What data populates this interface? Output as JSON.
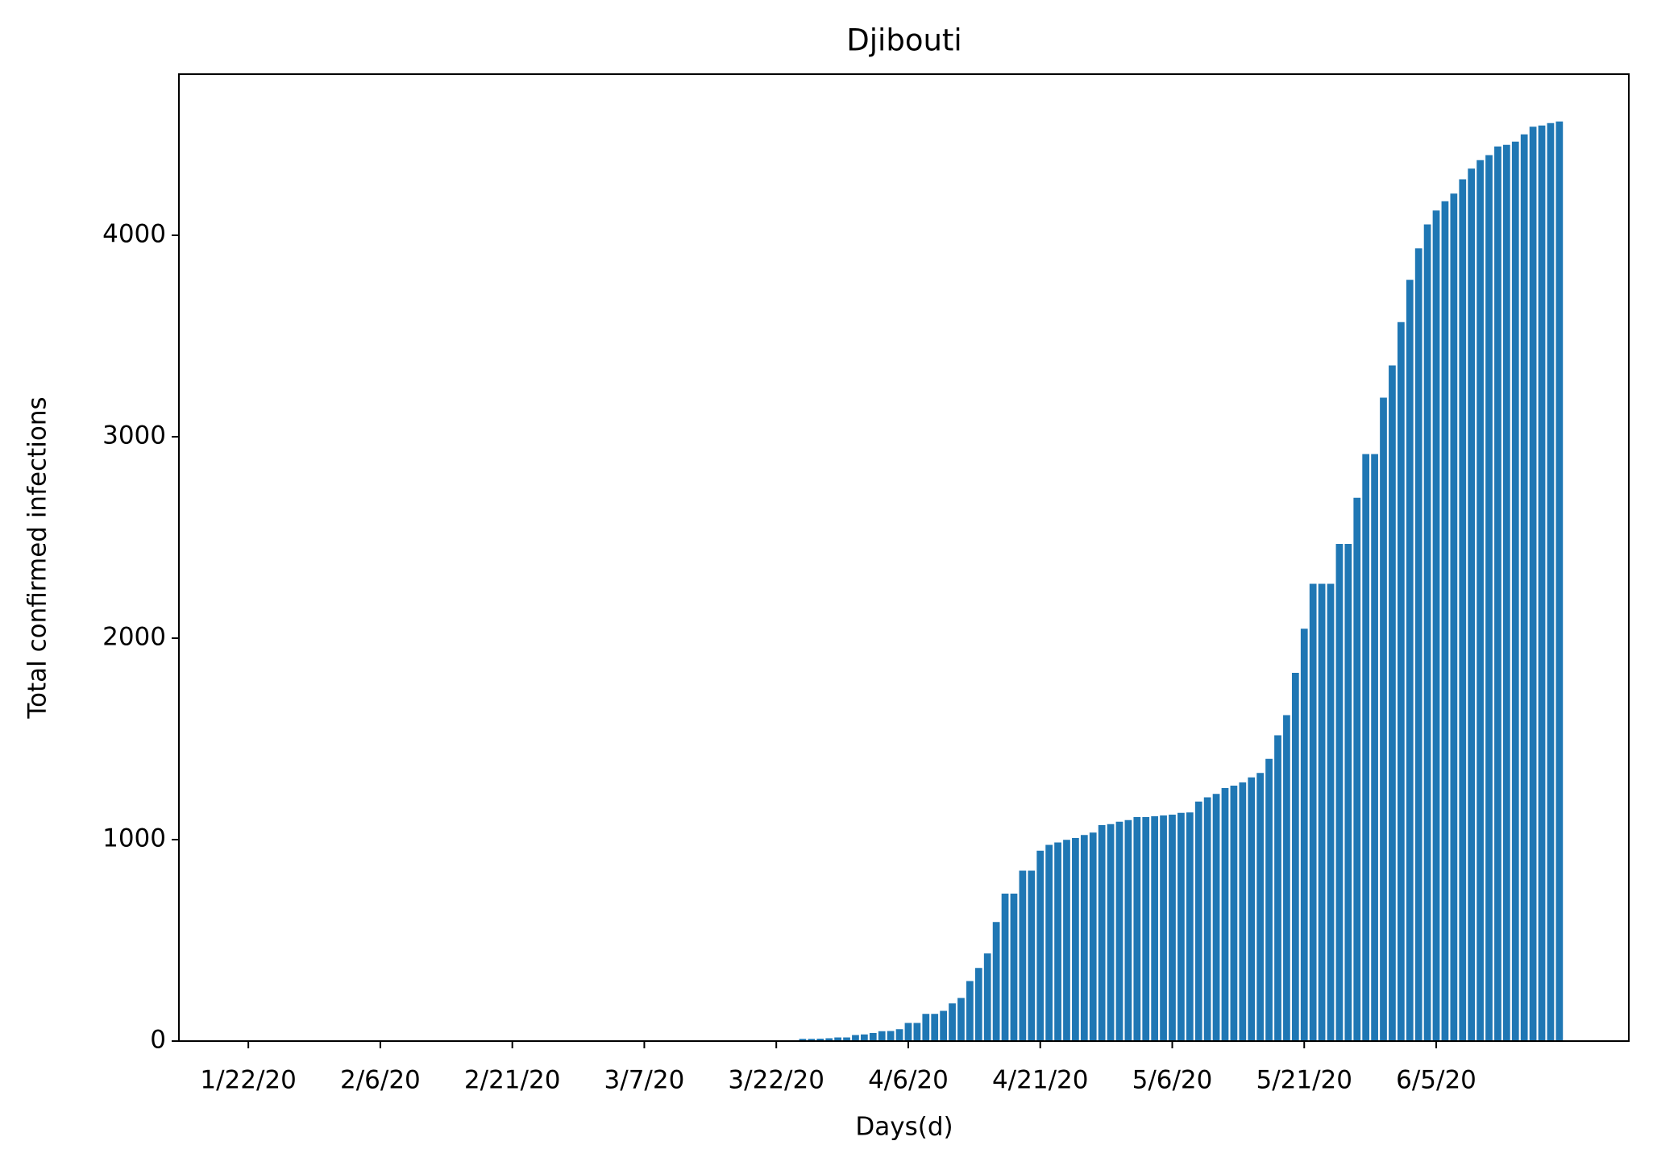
{
  "chart_data": {
    "type": "bar",
    "title": "Djibouti",
    "x_label": "Days(d)",
    "y_label": "Total confirmed infections",
    "color": "#1f77b4",
    "categories": [
      "1/22/20",
      null,
      null,
      null,
      null,
      null,
      null,
      null,
      null,
      null,
      null,
      null,
      null,
      null,
      null,
      "2/6/20",
      null,
      null,
      null,
      null,
      null,
      null,
      null,
      null,
      null,
      null,
      null,
      null,
      null,
      null,
      "2/21/20",
      null,
      null,
      null,
      null,
      null,
      null,
      null,
      null,
      null,
      null,
      null,
      null,
      null,
      null,
      "3/7/20",
      null,
      null,
      null,
      null,
      null,
      null,
      null,
      null,
      null,
      null,
      null,
      null,
      null,
      null,
      "3/22/20",
      null,
      null,
      null,
      null,
      null,
      null,
      null,
      null,
      null,
      null,
      null,
      null,
      null,
      null,
      "4/6/20",
      null,
      null,
      null,
      null,
      null,
      null,
      null,
      null,
      null,
      null,
      null,
      null,
      null,
      null,
      "4/21/20",
      null,
      null,
      null,
      null,
      null,
      null,
      null,
      null,
      null,
      null,
      null,
      null,
      null,
      null,
      "5/6/20",
      null,
      null,
      null,
      null,
      null,
      null,
      null,
      null,
      null,
      null,
      null,
      null,
      null,
      null,
      "5/21/20",
      null,
      null,
      null,
      null,
      null,
      null,
      null,
      null,
      null,
      null,
      null,
      null,
      null,
      null,
      "6/5/20",
      null,
      null,
      null,
      null,
      null,
      null,
      null,
      null,
      null,
      null,
      null,
      null,
      null,
      null
    ],
    "values": [
      0,
      0,
      0,
      0,
      0,
      0,
      0,
      0,
      0,
      0,
      0,
      0,
      0,
      0,
      0,
      0,
      0,
      0,
      0,
      0,
      0,
      0,
      0,
      0,
      0,
      0,
      0,
      0,
      0,
      0,
      0,
      0,
      0,
      0,
      0,
      0,
      0,
      0,
      0,
      0,
      0,
      0,
      0,
      0,
      0,
      0,
      0,
      0,
      0,
      0,
      0,
      0,
      0,
      0,
      0,
      0,
      1,
      1,
      1,
      1,
      1,
      3,
      3,
      11,
      11,
      12,
      14,
      18,
      18,
      30,
      33,
      40,
      49,
      50,
      59,
      90,
      90,
      135,
      135,
      150,
      187,
      214,
      298,
      363,
      435,
      591,
      732,
      732,
      846,
      846,
      945,
      974,
      986,
      999,
      1008,
      1023,
      1035,
      1072,
      1077,
      1089,
      1097,
      1112,
      1112,
      1116,
      1120,
      1124,
      1133,
      1135,
      1189,
      1210,
      1227,
      1256,
      1268,
      1284,
      1309,
      1331,
      1401,
      1518,
      1618,
      1828,
      2047,
      2270,
      2270,
      2270,
      2468,
      2468,
      2697,
      2914,
      2914,
      3194,
      3354,
      3569,
      3779,
      3935,
      4054,
      4123,
      4169,
      4207,
      4278,
      4331,
      4373,
      4398,
      4441,
      4449,
      4465,
      4501,
      4539,
      4545,
      4557,
      4565
    ],
    "ylim": [
      0,
      4800
    ],
    "yticks": [
      0,
      1000,
      2000,
      3000,
      4000
    ],
    "grid": false
  }
}
